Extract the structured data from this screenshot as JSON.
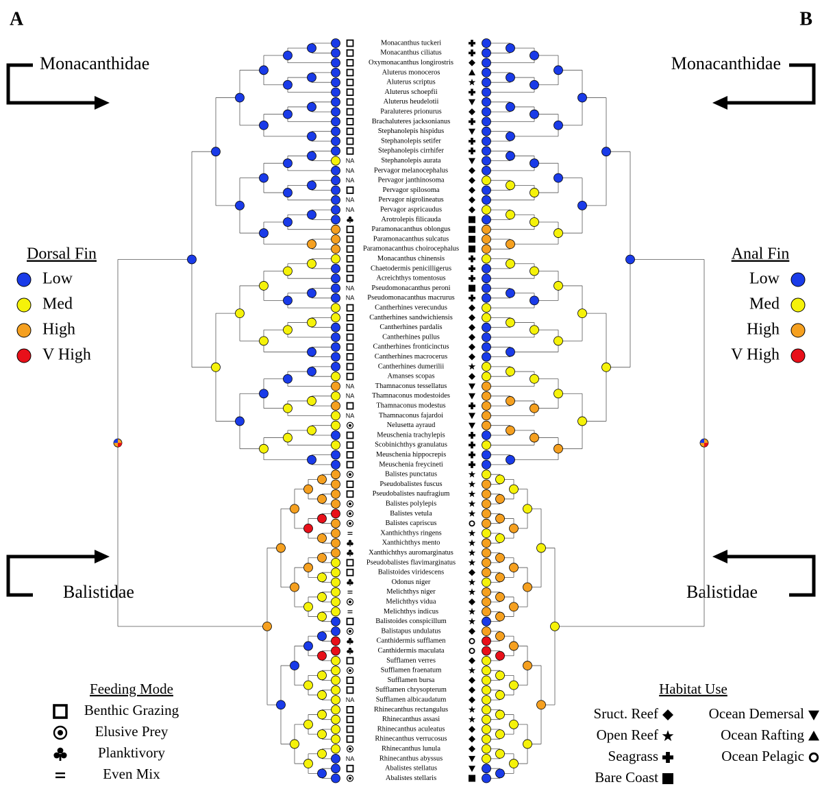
{
  "panels": {
    "left": "A",
    "right": "B"
  },
  "families": {
    "monacanthidae": "Monacanthidae",
    "balistidae": "Balistidae"
  },
  "dorsal_fin": {
    "title": "Dorsal Fin",
    "states": [
      {
        "label": "Low",
        "color": "#1a3be8"
      },
      {
        "label": "Med",
        "color": "#f5f20a"
      },
      {
        "label": "High",
        "color": "#f5a020"
      },
      {
        "label": "V High",
        "color": "#e8101a"
      }
    ]
  },
  "anal_fin": {
    "title": "Anal Fin",
    "states": [
      {
        "label": "Low",
        "color": "#1a3be8"
      },
      {
        "label": "Med",
        "color": "#f5f20a"
      },
      {
        "label": "High",
        "color": "#f5a020"
      },
      {
        "label": "V High",
        "color": "#e8101a"
      }
    ]
  },
  "feeding_mode": {
    "title": "Feeding Mode",
    "modes": [
      "Benthic Grazing",
      "Elusive Prey",
      "Planktivory",
      "Even Mix"
    ]
  },
  "habitat_use": {
    "title": "Habitat Use",
    "habitats": [
      "Sruct. Reef",
      "Open Reef",
      "Seagrass",
      "Bare Coast",
      "Ocean Demersal",
      "Ocean Rafting",
      "Ocean Pelagic"
    ]
  },
  "species": [
    [
      "Monacanthus tuckeri",
      "Benthic Grazing",
      "Seagrass",
      "Low",
      "Low"
    ],
    [
      "Monacanthus ciliatus",
      "Benthic Grazing",
      "Seagrass",
      "Low",
      "Low"
    ],
    [
      "Oxymonacanthus longirostris",
      "Benthic Grazing",
      "Sruct. Reef",
      "Low",
      "Low"
    ],
    [
      "Aluterus monoceros",
      "Benthic Grazing",
      "Ocean Rafting",
      "Low",
      "Low"
    ],
    [
      "Aluterus scriptus",
      "Benthic Grazing",
      "Open Reef",
      "Low",
      "Low"
    ],
    [
      "Aluterus schoepfii",
      "Benthic Grazing",
      "Seagrass",
      "Low",
      "Low"
    ],
    [
      "Aluterus heudelotii",
      "Benthic Grazing",
      "Ocean Demersal",
      "Low",
      "Low"
    ],
    [
      "Paraluteres prionurus",
      "Benthic Grazing",
      "Sruct. Reef",
      "Low",
      "Low"
    ],
    [
      "Brachaluteres jacksonianus",
      "Benthic Grazing",
      "Seagrass",
      "Low",
      "Low"
    ],
    [
      "Stephanolepis hispidus",
      "Benthic Grazing",
      "Ocean Demersal",
      "Low",
      "Low"
    ],
    [
      "Stephanolepis setifer",
      "Benthic Grazing",
      "Seagrass",
      "Low",
      "Low"
    ],
    [
      "Stephanolepis cirrhifer",
      "Benthic Grazing",
      "Seagrass",
      "Low",
      "Low"
    ],
    [
      "Stephanolepis aurata",
      "NA",
      "Ocean Demersal",
      "Med",
      "Low"
    ],
    [
      "Pervagor melanocephalus",
      "NA",
      "Sruct. Reef",
      "Low",
      "Low"
    ],
    [
      "Pervagor janthinosoma",
      "NA",
      "Sruct. Reef",
      "Low",
      "Med"
    ],
    [
      "Pervagor spilosoma",
      "Benthic Grazing",
      "Sruct. Reef",
      "Low",
      "Low"
    ],
    [
      "Pervagor nigrolineatus",
      "NA",
      "Sruct. Reef",
      "Low",
      "Low"
    ],
    [
      "Pervagor aspricaudus",
      "NA",
      "Sruct. Reef",
      "Low",
      "Med"
    ],
    [
      "Arotrolepis filicauda",
      "Planktivory",
      "Bare Coast",
      "Low",
      "Low"
    ],
    [
      "Paramonacanthus oblongus",
      "Benthic Grazing",
      "Bare Coast",
      "High",
      "High"
    ],
    [
      "Paramonacanthus sulcatus",
      "Benthic Grazing",
      "Bare Coast",
      "High",
      "High"
    ],
    [
      "Paramonacanthus choirocephalus",
      "Benthic Grazing",
      "Bare Coast",
      "High",
      "High"
    ],
    [
      "Monacanthus chinensis",
      "Benthic Grazing",
      "Seagrass",
      "Med",
      "Med"
    ],
    [
      "Chaetodermis penicilligerus",
      "Benthic Grazing",
      "Seagrass",
      "Low",
      "Low"
    ],
    [
      "Acreichthys tomentosus",
      "Benthic Grazing",
      "Seagrass",
      "Low",
      "Low"
    ],
    [
      "Pseudomonacanthus peroni",
      "NA",
      "Bare Coast",
      "Low",
      "Low"
    ],
    [
      "Pseudomonacanthus macrurus",
      "NA",
      "Seagrass",
      "Low",
      "Low"
    ],
    [
      "Cantherhines verecundus",
      "Benthic Grazing",
      "Sruct. Reef",
      "Med",
      "Med"
    ],
    [
      "Cantherhines sandwichiensis",
      "Benthic Grazing",
      "Sruct. Reef",
      "Med",
      "Med"
    ],
    [
      "Cantherhines pardalis",
      "Benthic Grazing",
      "Sruct. Reef",
      "Low",
      "Low"
    ],
    [
      "Cantherhines pullus",
      "Benthic Grazing",
      "Sruct. Reef",
      "Low",
      "Low"
    ],
    [
      "Cantherhines fronticinctus",
      "Benthic Grazing",
      "Sruct. Reef",
      "Low",
      "Low"
    ],
    [
      "Cantherhines macrocerus",
      "Benthic Grazing",
      "Sruct. Reef",
      "Low",
      "Low"
    ],
    [
      "Cantherhines dumerilii",
      "Benthic Grazing",
      "Open Reef",
      "Low",
      "Med"
    ],
    [
      "Amanses scopas",
      "Benthic Grazing",
      "Sruct. Reef",
      "Med",
      "Med"
    ],
    [
      "Thamnaconus tessellatus",
      "NA",
      "Ocean Demersal",
      "High",
      "High"
    ],
    [
      "Thamnaconus modestoides",
      "NA",
      "Ocean Demersal",
      "Med",
      "High"
    ],
    [
      "Thamnaconus modestus",
      "Benthic Grazing",
      "Seagrass",
      "High",
      "High"
    ],
    [
      "Thamnaconus fajardoi",
      "NA",
      "Ocean Demersal",
      "Med",
      "High"
    ],
    [
      "Nelusetta ayraud",
      "Elusive Prey",
      "Ocean Demersal",
      "Med",
      "High"
    ],
    [
      "Meuschenia trachylepis",
      "Benthic Grazing",
      "Seagrass",
      "Low",
      "Low"
    ],
    [
      "Scobinichthys granulatus",
      "Benthic Grazing",
      "Seagrass",
      "Med",
      "Med"
    ],
    [
      "Meuschenia hippocrepis",
      "Benthic Grazing",
      "Seagrass",
      "Low",
      "Low"
    ],
    [
      "Meuschenia freycineti",
      "Benthic Grazing",
      "Seagrass",
      "Low",
      "Low"
    ],
    [
      "Balistes punctatus",
      "Elusive Prey",
      "Open Reef",
      "High",
      "Med"
    ],
    [
      "Pseudobalistes fuscus",
      "Benthic Grazing",
      "Open Reef",
      "High",
      "High"
    ],
    [
      "Pseudobalistes naufragium",
      "Benthic Grazing",
      "Open Reef",
      "High",
      "High"
    ],
    [
      "Balistes polylepis",
      "Elusive Prey",
      "Open Reef",
      "High",
      "High"
    ],
    [
      "Balistes vetula",
      "Elusive Prey",
      "Open Reef",
      "V High",
      "High"
    ],
    [
      "Balistes capriscus",
      "Elusive Prey",
      "Ocean Pelagic",
      "High",
      "High"
    ],
    [
      "Xanthichthys ringens",
      "Even Mix",
      "Open Reef",
      "High",
      "Med"
    ],
    [
      "Xanthichthys mento",
      "Planktivory",
      "Open Reef",
      "High",
      "High"
    ],
    [
      "Xanthichthys auromarginatus",
      "Planktivory",
      "Open Reef",
      "High",
      "High"
    ],
    [
      "Pseudobalistes flavimarginatus",
      "Benthic Grazing",
      "Open Reef",
      "Med",
      "High"
    ],
    [
      "Balistoides viridescens",
      "Benthic Grazing",
      "Sruct. Reef",
      "Med",
      "High"
    ],
    [
      "Odonus niger",
      "Planktivory",
      "Open Reef",
      "Med",
      "Med"
    ],
    [
      "Melichthys niger",
      "Even Mix",
      "Open Reef",
      "Med",
      "High"
    ],
    [
      "Melichthys vidua",
      "Elusive Prey",
      "Sruct. Reef",
      "Med",
      "High"
    ],
    [
      "Melichthys indicus",
      "Even Mix",
      "Open Reef",
      "Med",
      "High"
    ],
    [
      "Balistoides conspicillum",
      "Benthic Grazing",
      "Open Reef",
      "Low",
      "Low"
    ],
    [
      "Balistapus undulatus",
      "Elusive Prey",
      "Sruct. Reef",
      "Low",
      "High"
    ],
    [
      "Canthidermis sufflamen",
      "Planktivory",
      "Ocean Pelagic",
      "V High",
      "V High"
    ],
    [
      "Canthidermis maculata",
      "Planktivory",
      "Ocean Pelagic",
      "V High",
      "V High"
    ],
    [
      "Sufflamen verres",
      "Benthic Grazing",
      "Sruct. Reef",
      "Med",
      "Med"
    ],
    [
      "Sufflamen fraenatum",
      "Elusive Prey",
      "Open Reef",
      "Med",
      "Med"
    ],
    [
      "Sufflamen bursa",
      "Benthic Grazing",
      "Sruct. Reef",
      "Med",
      "Med"
    ],
    [
      "Sufflamen chrysopterum",
      "Benthic Grazing",
      "Sruct. Reef",
      "Med",
      "Med"
    ],
    [
      "Sufflamen albicaudatum",
      "NA",
      "Sruct. Reef",
      "Med",
      "Med"
    ],
    [
      "Rhinecanthus rectangulus",
      "Benthic Grazing",
      "Open Reef",
      "Med",
      "Med"
    ],
    [
      "Rhinecanthus assasi",
      "Benthic Grazing",
      "Open Reef",
      "Med",
      "Med"
    ],
    [
      "Rhinecanthus aculeatus",
      "Benthic Grazing",
      "Sruct. Reef",
      "Med",
      "Med"
    ],
    [
      "Rhinecanthus verrucosus",
      "Benthic Grazing",
      "Sruct. Reef",
      "Med",
      "Med"
    ],
    [
      "Rhinecanthus lunula",
      "Elusive Prey",
      "Sruct. Reef",
      "Med",
      "Med"
    ],
    [
      "Rhinecanthus abyssus",
      "NA",
      "Ocean Demersal",
      "Low",
      "Med"
    ],
    [
      "Abalistes stellatus",
      "Benthic Grazing",
      "Ocean Demersal",
      "Low",
      "Low"
    ],
    [
      "Abalistes stellaris",
      "Elusive Prey",
      "Bare Coast",
      "Low",
      "Low"
    ]
  ]
}
